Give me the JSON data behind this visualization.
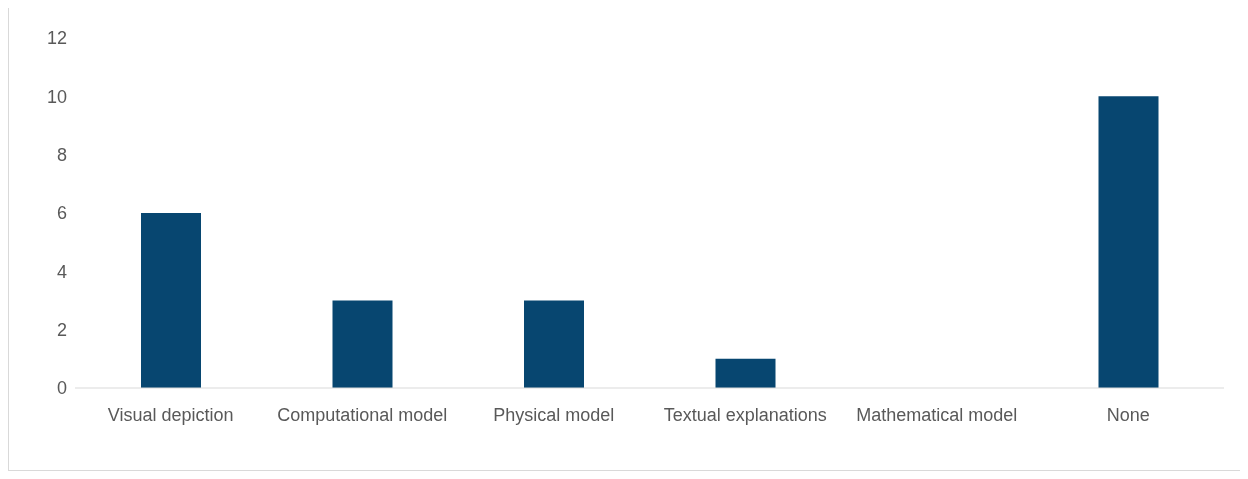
{
  "chart_data": {
    "type": "bar",
    "categories": [
      "Visual depiction",
      "Computational model",
      "Physical model",
      "Textual explanations",
      "Mathematical model",
      "None"
    ],
    "values": [
      6,
      3,
      3,
      1,
      0,
      10
    ],
    "color": "#074670",
    "ylim": [
      0,
      12
    ],
    "yticks": [
      0,
      2,
      4,
      6,
      8,
      10,
      12
    ],
    "grid": false
  }
}
